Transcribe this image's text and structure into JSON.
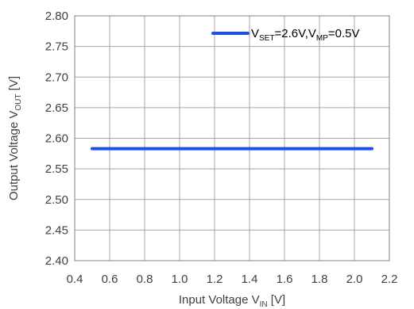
{
  "chart_data": {
    "type": "line",
    "xlabel": {
      "main": "Input Voltage V",
      "sub": "IN",
      "unit": " [V]"
    },
    "ylabel": {
      "main": "Output Voltage V",
      "sub": "OUT",
      "unit": " [V]"
    },
    "xlim": [
      0.4,
      2.2
    ],
    "ylim": [
      2.4,
      2.8
    ],
    "xticks": [
      "0.4",
      "0.6",
      "0.8",
      "1.0",
      "1.2",
      "1.4",
      "1.6",
      "1.8",
      "2.0",
      "2.2"
    ],
    "yticks": [
      "2.80",
      "2.75",
      "2.70",
      "2.65",
      "2.60",
      "2.55",
      "2.50",
      "2.45",
      "2.40"
    ],
    "grid": true,
    "legend_position": "top-right",
    "series": [
      {
        "legend": {
          "p1": "V",
          "s1": "SET",
          "p2": "=2.6V,V",
          "s2": "MP",
          "p3": "=0.5V"
        },
        "color": "#1f4fe0",
        "x": [
          0.5,
          0.7,
          0.9,
          1.1,
          1.3,
          1.5,
          1.7,
          1.9,
          2.1
        ],
        "y": [
          2.583,
          2.583,
          2.583,
          2.583,
          2.583,
          2.583,
          2.583,
          2.583,
          2.583
        ]
      }
    ]
  }
}
